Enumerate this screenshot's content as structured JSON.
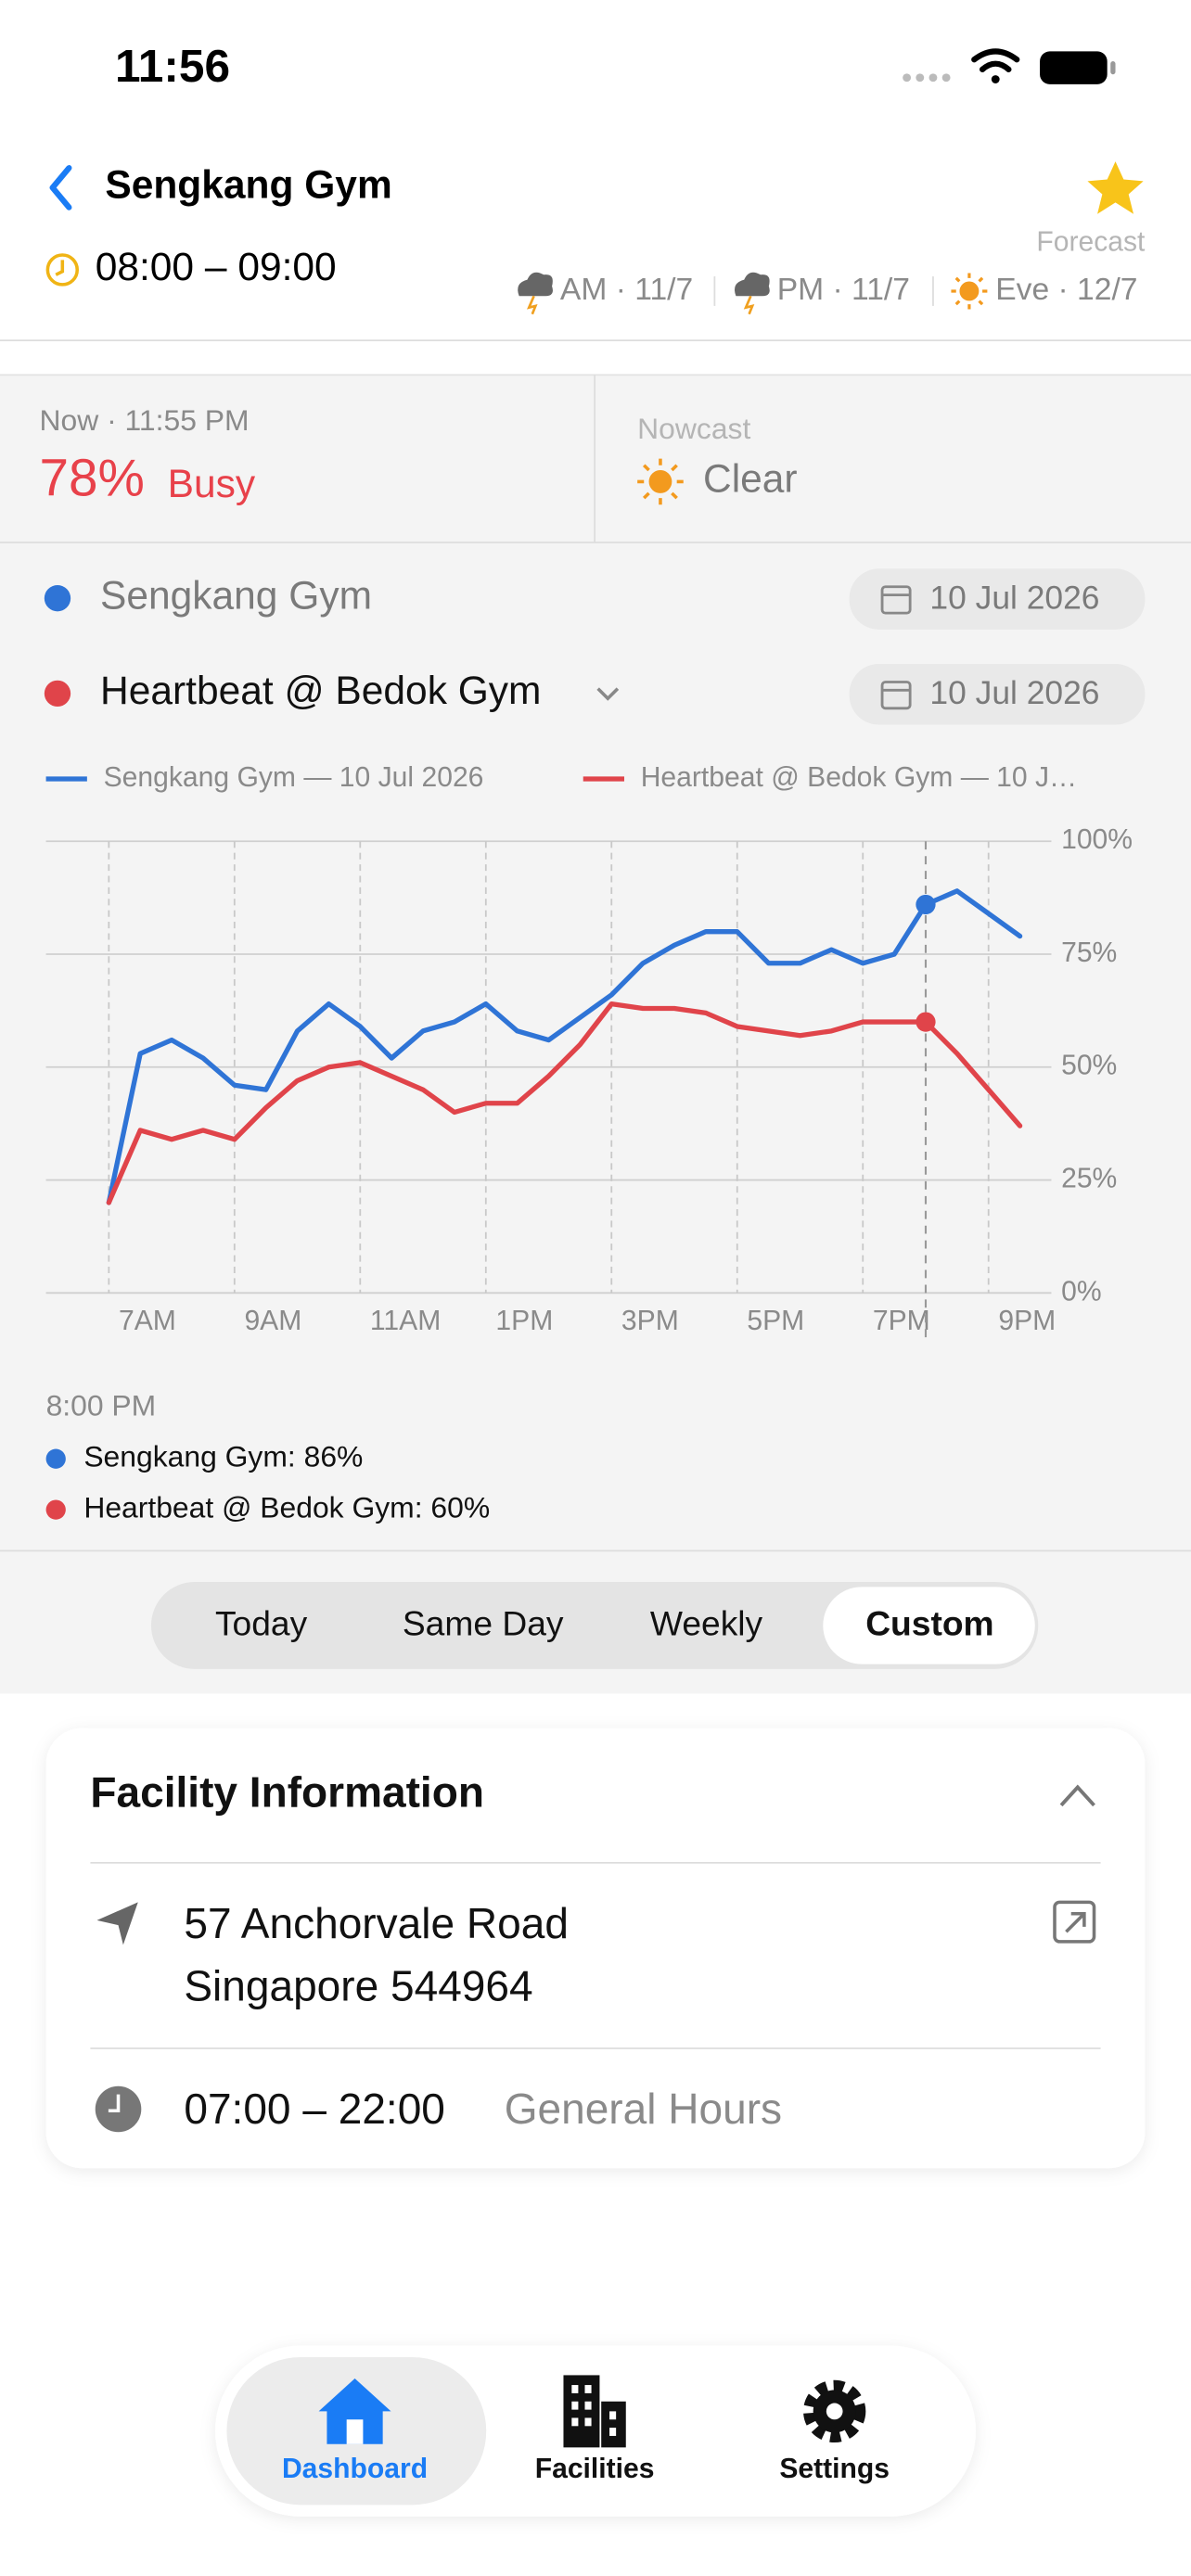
{
  "status_bar": {
    "time": "11:56"
  },
  "header": {
    "title": "Sengkang Gym",
    "session": "08:00 – 09:00",
    "forecast_label": "Forecast",
    "forecast": [
      "AM · 11/7",
      "PM · 11/7",
      "Eve · 12/7"
    ]
  },
  "now": {
    "label": "Now · 11:55 PM",
    "percent": "78%",
    "status": "Busy"
  },
  "nowcast": {
    "label": "Nowcast",
    "condition": "Clear"
  },
  "comparison": [
    {
      "facility": "Sengkang Gym",
      "date": "10 Jul 2026"
    },
    {
      "facility": "Heartbeat @ Bedok Gym",
      "date": "10 Jul 2026"
    }
  ],
  "chart_data": {
    "type": "line",
    "x": [
      7,
      7.5,
      8,
      8.5,
      9,
      9.5,
      10,
      10.5,
      11,
      11.5,
      12,
      12.5,
      13,
      13.5,
      14,
      14.5,
      15,
      15.5,
      16,
      16.5,
      17,
      17.5,
      18,
      18.5,
      19,
      19.5,
      20,
      20.5,
      21,
      21.5
    ],
    "xlim": [
      6,
      22
    ],
    "xticks": [
      {
        "value": 7,
        "label": "7AM"
      },
      {
        "value": 9,
        "label": "9AM"
      },
      {
        "value": 11,
        "label": "11AM"
      },
      {
        "value": 13,
        "label": "1PM"
      },
      {
        "value": 15,
        "label": "3PM"
      },
      {
        "value": 17,
        "label": "5PM"
      },
      {
        "value": 19,
        "label": "7PM"
      },
      {
        "value": 21,
        "label": "9PM"
      }
    ],
    "ylim": [
      0,
      100
    ],
    "yticks": [
      {
        "value": 0,
        "label": "0%"
      },
      {
        "value": 25,
        "label": "25%"
      },
      {
        "value": 50,
        "label": "50%"
      },
      {
        "value": 75,
        "label": "75%"
      },
      {
        "value": 100,
        "label": "100%"
      }
    ],
    "grid": true,
    "series": [
      {
        "name": "Sengkang Gym — 10 Jul 2026",
        "color": "#2f74d6",
        "values": [
          20,
          53,
          56,
          52,
          46,
          45,
          58,
          64,
          59,
          52,
          58,
          60,
          64,
          58,
          56,
          61,
          66,
          73,
          77,
          80,
          80,
          73,
          73,
          76,
          73,
          75,
          86,
          89,
          84,
          79
        ]
      },
      {
        "name": "Heartbeat @ Bedok Gym — 10 J…",
        "color": "#e0444a",
        "values": [
          20,
          36,
          34,
          36,
          34,
          41,
          47,
          50,
          51,
          48,
          45,
          40,
          42,
          42,
          48,
          55,
          64,
          63,
          63,
          62,
          59,
          58,
          57,
          58,
          60,
          60,
          60,
          53,
          45,
          37
        ]
      }
    ],
    "selected_x": 20,
    "tooltip": {
      "title": "8:00 PM",
      "items": [
        "Sengkang Gym: 86%",
        "Heartbeat @ Bedok Gym: 60%"
      ]
    }
  },
  "range_tabs": [
    "Today",
    "Same Day",
    "Weekly",
    "Custom"
  ],
  "facility_info": {
    "title": "Facility Information",
    "address": [
      "57 Anchorvale Road",
      "Singapore 544964"
    ],
    "hours": "07:00 – 22:00",
    "hours_label": "General Hours"
  },
  "tab_bar": [
    "Dashboard",
    "Facilities",
    "Settings"
  ]
}
